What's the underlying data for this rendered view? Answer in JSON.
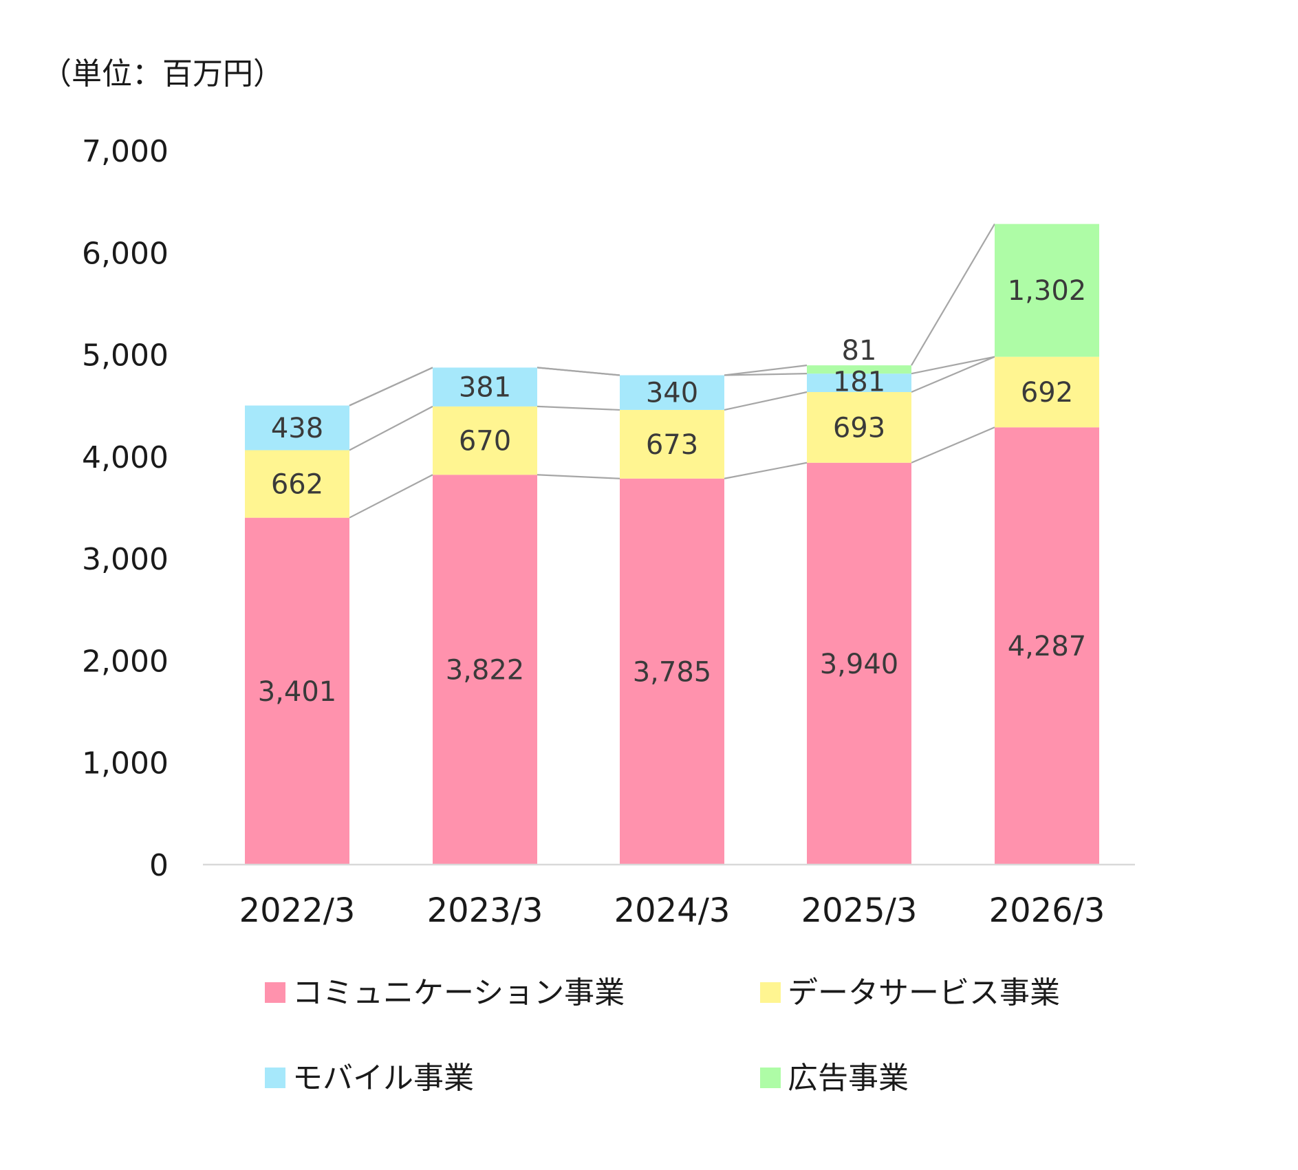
{
  "chart_data": {
    "type": "bar",
    "stacked": true,
    "unit_label": "（単位：百万円）",
    "categories": [
      "2022/3",
      "2023/3",
      "2024/3",
      "2025/3",
      "2026/3"
    ],
    "series": [
      {
        "name": "コミュニケーション事業",
        "color": "#ff92ad",
        "values": [
          3401,
          3822,
          3785,
          3940,
          4287
        ],
        "labels": [
          "3,401",
          "3,822",
          "3,785",
          "3,940",
          "4,287"
        ]
      },
      {
        "name": "データサービス事業",
        "color": "#fff591",
        "values": [
          662,
          670,
          673,
          693,
          692
        ],
        "labels": [
          "662",
          "670",
          "673",
          "693",
          "692"
        ]
      },
      {
        "name": "モバイル事業",
        "color": "#a6e8fb",
        "values": [
          438,
          381,
          340,
          181,
          0
        ],
        "labels": [
          "438",
          "381",
          "340",
          "181",
          ""
        ]
      },
      {
        "name": "広告事業",
        "color": "#aefca6",
        "values": [
          0,
          0,
          0,
          81,
          1302
        ],
        "labels": [
          "",
          "",
          "",
          "81",
          "1,302"
        ]
      }
    ],
    "ylim": [
      0,
      7000
    ],
    "yticks": [
      0,
      1000,
      2000,
      3000,
      4000,
      5000,
      6000,
      7000
    ],
    "ytick_labels": [
      "0",
      "1,000",
      "2,000",
      "3,000",
      "4,000",
      "5,000",
      "6,000",
      "7,000"
    ],
    "series_lines": true,
    "grid": false,
    "legend_position": "bottom"
  }
}
